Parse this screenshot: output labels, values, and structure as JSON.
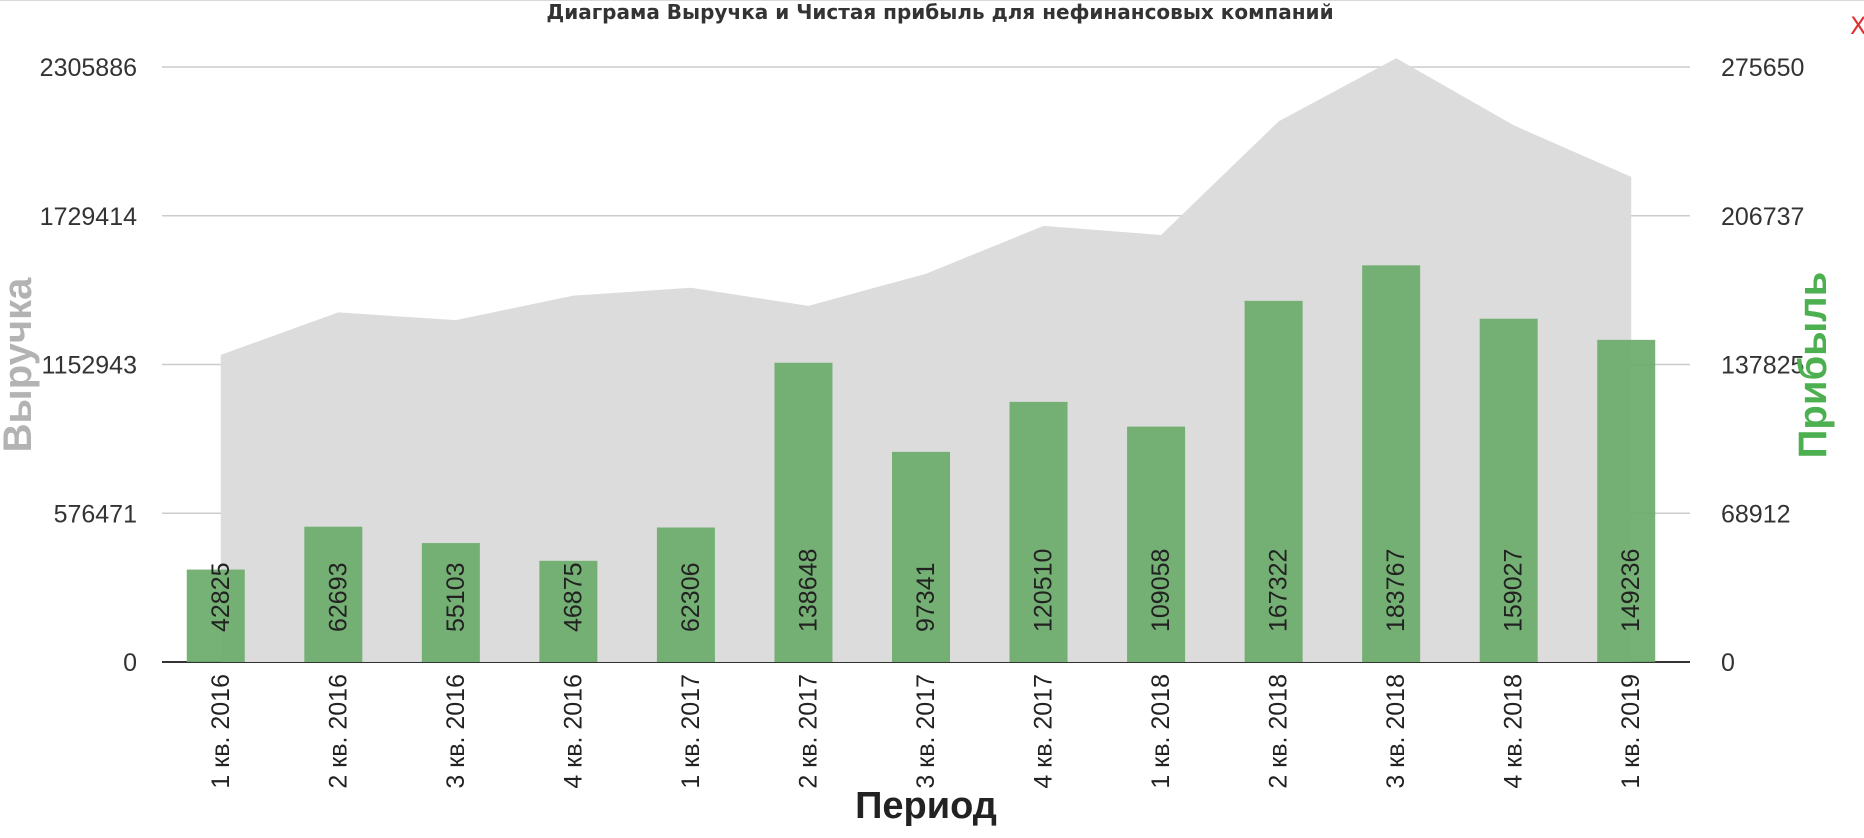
{
  "chart_data": {
    "type": "bar",
    "title": "Диаграма Выручка и Чистая прибыль для нефинансовых компаний",
    "xlabel": "Период",
    "ylabel_left": "Выручка",
    "ylabel_right": "Прибыль",
    "categories": [
      "1 кв. 2016",
      "2 кв. 2016",
      "3 кв. 2016",
      "4 кв. 2016",
      "1 кв. 2017",
      "2 кв. 2017",
      "3 кв. 2017",
      "4 кв. 2017",
      "1 кв. 2018",
      "2 кв. 2018",
      "3 кв. 2018",
      "4 кв. 2018",
      "1 кв. 2019"
    ],
    "left_axis": {
      "ticks": [
        "0",
        "576471",
        "1152943",
        "1729414",
        "2305886"
      ],
      "ylim": [
        0,
        2305886
      ]
    },
    "right_axis": {
      "ticks": [
        "0",
        "68912",
        "137825",
        "206737",
        "275650"
      ],
      "ylim": [
        0,
        275650
      ]
    },
    "series": [
      {
        "name": "Выручка",
        "type": "area",
        "axis": "left",
        "color": "#dcdcdc",
        "values": [
          1190000,
          1355000,
          1325000,
          1420000,
          1450000,
          1380000,
          1505000,
          1690000,
          1655000,
          2095000,
          2340000,
          2080000,
          1880000
        ]
      },
      {
        "name": "Прибыль",
        "type": "bar",
        "axis": "right",
        "color": "#6aab6a",
        "values": [
          42825,
          62693,
          55103,
          46875,
          62306,
          138648,
          97341,
          120510,
          109058,
          167322,
          183767,
          159027,
          149236
        ]
      }
    ],
    "grid": true,
    "value_labels": true
  },
  "colors": {
    "title": "#333333",
    "revenue_label": "#b3b3b3",
    "profit_label": "#4caf50",
    "close": "#e03030"
  },
  "close_label": "X"
}
